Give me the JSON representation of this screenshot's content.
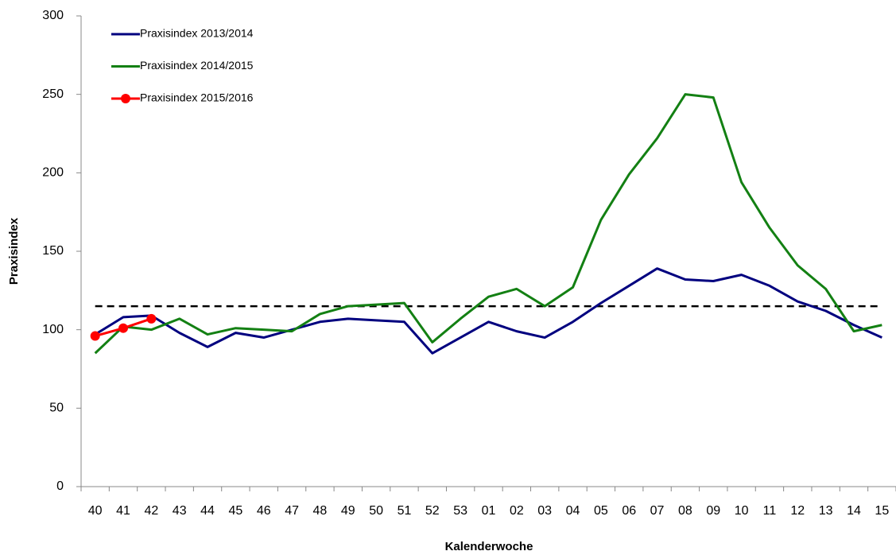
{
  "chart_data": {
    "type": "line",
    "x_label": "Kalenderwoche",
    "y_label": "Praxisindex",
    "categories": [
      "40",
      "41",
      "42",
      "43",
      "44",
      "45",
      "46",
      "47",
      "48",
      "49",
      "50",
      "51",
      "52",
      "53",
      "01",
      "02",
      "03",
      "04",
      "05",
      "06",
      "07",
      "08",
      "09",
      "10",
      "11",
      "12",
      "13",
      "14",
      "15"
    ],
    "series": [
      {
        "name": "Praxisindex 2013/2014",
        "color": "#00007f",
        "markers": false,
        "values": [
          97,
          108,
          109,
          98,
          89,
          98,
          95,
          100,
          105,
          107,
          106,
          105,
          85,
          95,
          105,
          99,
          95,
          105,
          117,
          128,
          139,
          132,
          131,
          135,
          128,
          118,
          112,
          103,
          95
        ]
      },
      {
        "name": "Praxisindex 2014/2015",
        "color": "#138013",
        "markers": false,
        "values": [
          85,
          102,
          100,
          107,
          97,
          101,
          100,
          99,
          110,
          115,
          116,
          117,
          92,
          107,
          121,
          126,
          115,
          127,
          170,
          199,
          222,
          250,
          248,
          194,
          165,
          141,
          126,
          99,
          103
        ]
      },
      {
        "name": "Praxisindex 2015/2016",
        "color": "#ff0000",
        "markers": true,
        "values": [
          96,
          101,
          107,
          null,
          null,
          null,
          null,
          null,
          null,
          null,
          null,
          null,
          null,
          null,
          null,
          null,
          null,
          null,
          null,
          null,
          null,
          null,
          null,
          null,
          null,
          null,
          null,
          null,
          null
        ]
      }
    ],
    "reference_line": 115,
    "ylim": [
      0,
      300
    ],
    "yticks": [
      0,
      50,
      100,
      150,
      200,
      250,
      300
    ],
    "grid": false,
    "legend": "top-left"
  }
}
